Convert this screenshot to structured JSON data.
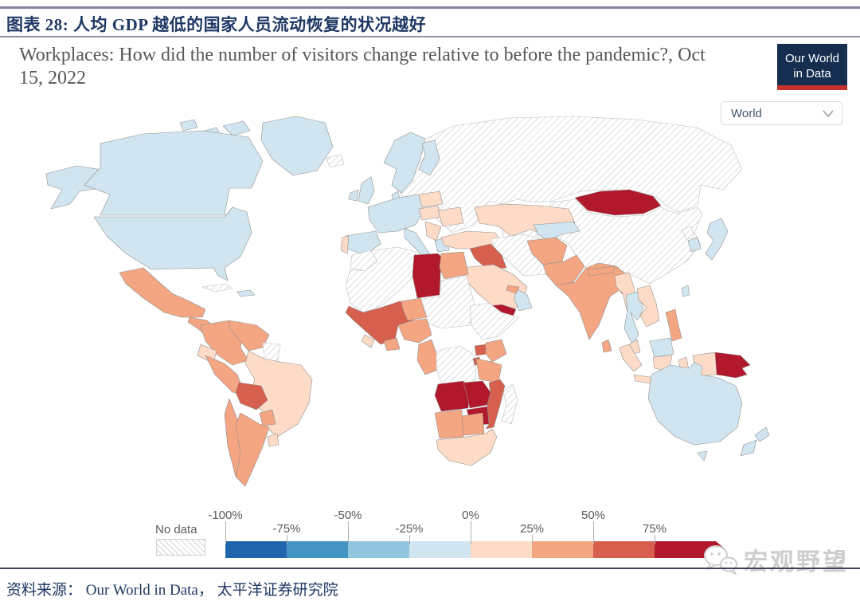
{
  "report": {
    "figure_title": "图表 28: 人均 GDP 越低的国家人员流动恢复的状况越好",
    "source_line": "资料来源： Our World in Data， 太平洋证券研究院",
    "watermark": "宏观野望"
  },
  "chart": {
    "title": "Workplaces: How did the number of visitors change relative to before the pandemic?, Oct 15, 2022",
    "logo_line1": "Our World",
    "logo_line2": "in Data",
    "region_selector": {
      "value": "World"
    },
    "legend": {
      "no_data_label": "No data"
    }
  },
  "chart_data": {
    "type": "choropleth_map",
    "title": "Workplaces: How did the number of visitors change relative to before the pandemic?",
    "date": "Oct 15, 2022",
    "unit": "%",
    "legend_position": "bottom",
    "tick_labels": [
      "-100%",
      "-75%",
      "-50%",
      "-25%",
      "0%",
      "25%",
      "50%",
      "75%"
    ],
    "bins": [
      {
        "id": "-100--75",
        "label": "-100% to -75%",
        "color": "#2166ac"
      },
      {
        "id": "-75--50",
        "label": "-75% to -50%",
        "color": "#4393c3"
      },
      {
        "id": "-50--25",
        "label": "-50% to -25%",
        "color": "#92c5de"
      },
      {
        "id": "-25-0",
        "label": "-25% to 0%",
        "color": "#d1e5f0"
      },
      {
        "id": "0-25",
        "label": "0% to 25%",
        "color": "#fddbc7"
      },
      {
        "id": "25-50",
        "label": "25% to 50%",
        "color": "#f4a582"
      },
      {
        "id": "50-75",
        "label": "50% to 75%",
        "color": "#d6604d"
      },
      {
        "id": "75+",
        "label": "75% and above",
        "color": "#b2182b"
      },
      {
        "id": "no-data",
        "label": "No data",
        "color": "hatch"
      }
    ],
    "countries": {
      "Canada": "-25-0",
      "United States": "-25-0",
      "Alaska": "-25-0",
      "Greenland": "-25-0",
      "Arctic Islands": "-25-0",
      "Mexico": "25-50",
      "Central America": "25-50",
      "Cuba": "no-data",
      "Hispaniola": "-25-0",
      "Colombia": "25-50",
      "Venezuela": "25-50",
      "Guyana-Suriname": "no-data",
      "Ecuador": "0-25",
      "Peru": "25-50",
      "Brazil": "0-25",
      "Bolivia": "50-75",
      "Paraguay": "25-50",
      "Chile": "25-50",
      "Argentina": "25-50",
      "Uruguay": "0-25",
      "Iceland": "no-data",
      "United Kingdom": "-25-0",
      "Ireland": "-25-0",
      "Norway-Sweden": "-25-0",
      "Finland": "-25-0",
      "Denmark": "-25-0",
      "Western Europe": "-25-0",
      "Spain": "-25-0",
      "Portugal": "0-25",
      "Italy": "-25-0",
      "Poland": "0-25",
      "Czechia-Hungary": "0-25",
      "Romania-Bulgaria": "0-25",
      "Balkans": "0-25",
      "Greece": "-25-0",
      "Russia-Ukraine-Belarus": "no-data",
      "Turkey": "0-25",
      "Kazakhstan": "0-25",
      "Uzbekistan-Kyrgyzstan": "-25-0",
      "Turkmenistan": "no-data",
      "Iran": "no-data",
      "Iraq": "50-75",
      "Saudi Arabia": "0-25",
      "Yemen": "75+",
      "Oman": "-25-0",
      "United Arab Emirates": "25-50",
      "Afghanistan": "25-50",
      "Pakistan": "25-50",
      "India": "25-50",
      "Nepal": "25-50",
      "Bangladesh": "50-75",
      "Sri Lanka": "25-50",
      "Myanmar": "0-25",
      "Thailand": "-25-0",
      "Vietnam-Laos-Cambodia": "0-25",
      "Malaysia Peninsula": "0-25",
      "Malaysia Borneo": "-25-0",
      "Sumatra": "0-25",
      "Java": "0-25",
      "Kalimantan": "0-25",
      "Sulawesi": "0-25",
      "Lesser Sunda": "0-25",
      "Philippines": "25-50",
      "China": "no-data",
      "Mongolia": "75+",
      "North Korea": "no-data",
      "South Korea": "-25-0",
      "Japan": "-25-0",
      "Taiwan": "-25-0",
      "West Papua": "0-25",
      "Papua New Guinea": "75+",
      "Australia": "-25-0",
      "Tasmania": "-25-0",
      "New Zealand North": "-25-0",
      "New Zealand South": "-25-0",
      "Morocco": "no-data",
      "Algeria-Mauritania": "no-data",
      "Libya": "75+",
      "Egypt": "25-50",
      "Chad-Sudan": "no-data",
      "Horn of Africa": "no-data",
      "Mali-Senegal-Guinea": "50-75",
      "Niger": "25-50",
      "Nigeria": "25-50",
      "Ghana": "25-50",
      "Sierra Leone-Liberia": "0-25",
      "Cameroon-Gabon": "25-50",
      "DR Congo": "no-data",
      "Uganda": "50-75",
      "Kenya": "25-50",
      "Rwanda-Burundi": "50-75",
      "Tanzania": "25-50",
      "Angola": "75+",
      "Zambia": "75+",
      "Malawi": "75+",
      "Zimbabwe": "75+",
      "Mozambique": "50-75",
      "Namibia": "25-50",
      "Botswana": "25-50",
      "South Africa": "0-25",
      "Madagascar": "no-data"
    }
  }
}
